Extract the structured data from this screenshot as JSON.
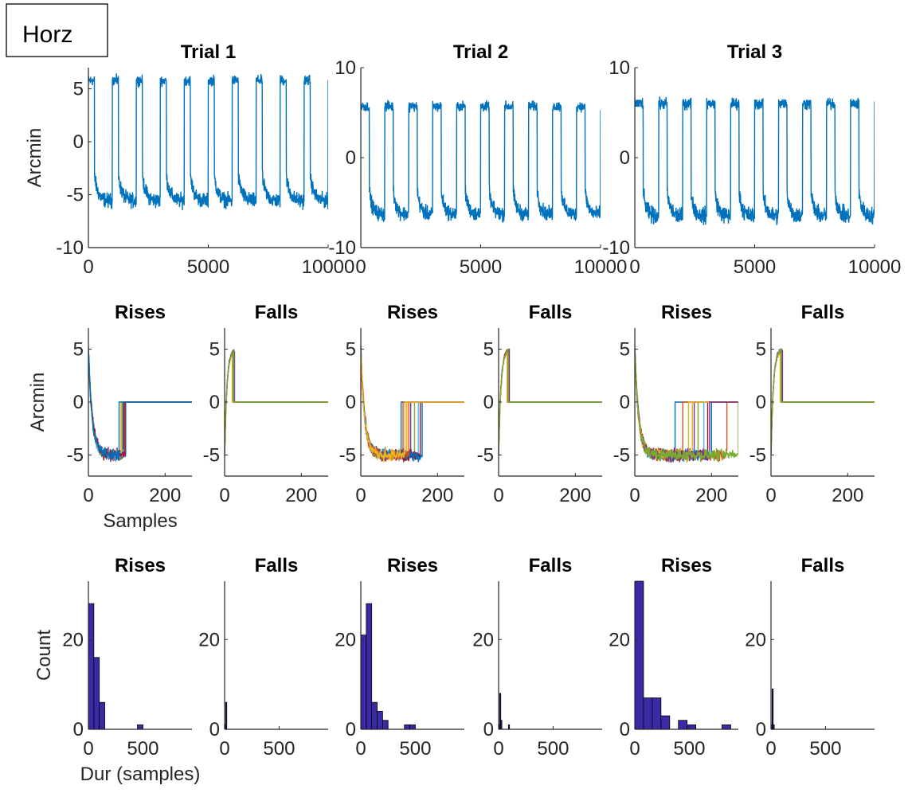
{
  "figure_label": "Horz",
  "colors": {
    "trace": "#0072BD",
    "hist_fill": "#3A2AA6",
    "axis": "#262626",
    "palette": [
      "#0072BD",
      "#D95319",
      "#EDB120",
      "#7E2F8E",
      "#77AC30",
      "#4DBEEE",
      "#A2142F"
    ]
  },
  "chart_data": [
    {
      "type": "line",
      "title": "Trial 1",
      "ylabel": "Arcmin",
      "xlabel": "",
      "xlim": [
        0,
        10000
      ],
      "ylim": [
        -10,
        7
      ],
      "xticks": [
        0,
        5000,
        10000
      ],
      "yticks": [
        -10,
        -5,
        0,
        5
      ],
      "series": [
        {
          "high_level": 5.8,
          "low_level": -5.6,
          "cycle_samples": 1000,
          "high_samples": 250,
          "low_start": -3.2,
          "noise": 0.6
        }
      ]
    },
    {
      "type": "line",
      "title": "Trial 2",
      "ylabel": "",
      "xlabel": "",
      "xlim": [
        0,
        10000
      ],
      "ylim": [
        -10,
        10
      ],
      "xticks": [
        0,
        5000,
        10000
      ],
      "yticks": [
        -10,
        0,
        10
      ],
      "series": [
        {
          "high_level": 5.7,
          "low_level": -6.3,
          "cycle_samples": 1000,
          "high_samples": 360,
          "low_start": -3.8,
          "noise": 0.7
        }
      ]
    },
    {
      "type": "line",
      "title": "Trial 3",
      "ylabel": "",
      "xlabel": "",
      "xlim": [
        0,
        10000
      ],
      "ylim": [
        -10,
        10
      ],
      "xticks": [
        0,
        5000,
        10000
      ],
      "yticks": [
        -10,
        0,
        10
      ],
      "series": [
        {
          "high_level": 6.0,
          "low_level": -6.5,
          "cycle_samples": 1000,
          "high_samples": 350,
          "low_start": -3.9,
          "noise": 0.8
        }
      ]
    },
    {
      "type": "line",
      "title": "Rises",
      "ylabel": "Arcmin",
      "xlabel": "Samples",
      "xlim": [
        0,
        270
      ],
      "ylim": [
        -7,
        7
      ],
      "xticks": [
        0,
        200
      ],
      "yticks": [
        -5,
        0,
        5
      ],
      "series": [
        {
          "end": 90
        },
        {
          "end": 95
        },
        {
          "end": 85
        },
        {
          "end": 92
        },
        {
          "end": 88
        },
        {
          "end": 98
        },
        {
          "end": 96
        },
        {
          "end": 80
        }
      ]
    },
    {
      "type": "line",
      "title": "Falls",
      "ylabel": "",
      "xlabel": "",
      "xlim": [
        0,
        270
      ],
      "ylim": [
        -7,
        7
      ],
      "xticks": [
        0,
        200
      ],
      "yticks": [
        -5,
        0,
        5
      ],
      "series": [
        {
          "end": 22
        },
        {
          "end": 24
        },
        {
          "end": 20
        },
        {
          "end": 26
        },
        {
          "end": 24
        }
      ]
    },
    {
      "type": "line",
      "title": "Rises",
      "ylabel": "",
      "xlabel": "",
      "xlim": [
        0,
        270
      ],
      "ylim": [
        -7,
        7
      ],
      "xticks": [
        0,
        200
      ],
      "yticks": [
        -5,
        0,
        5
      ],
      "series": [
        {
          "end": 105
        },
        {
          "end": 110
        },
        {
          "end": 120
        },
        {
          "end": 130
        },
        {
          "end": 140
        },
        {
          "end": 150
        },
        {
          "end": 155
        },
        {
          "end": 160
        },
        {
          "end": 125
        },
        {
          "end": 115
        }
      ]
    },
    {
      "type": "line",
      "title": "Falls",
      "ylabel": "",
      "xlabel": "",
      "xlim": [
        0,
        270
      ],
      "ylim": [
        -7,
        7
      ],
      "xticks": [
        0,
        200
      ],
      "yticks": [
        -5,
        0,
        5
      ],
      "series": [
        {
          "end": 24
        },
        {
          "end": 26
        },
        {
          "end": 22
        },
        {
          "end": 28
        },
        {
          "end": 25
        }
      ]
    },
    {
      "type": "line",
      "title": "Rises",
      "ylabel": "",
      "xlabel": "",
      "xlim": [
        0,
        270
      ],
      "ylim": [
        -7,
        7
      ],
      "xticks": [
        0,
        200
      ],
      "yticks": [
        -5,
        0,
        5
      ],
      "series": [
        {
          "end": 105
        },
        {
          "end": 125
        },
        {
          "end": 140
        },
        {
          "end": 155
        },
        {
          "end": 165
        },
        {
          "end": 180
        },
        {
          "end": 190
        },
        {
          "end": 200
        },
        {
          "end": 240
        },
        {
          "end": 150
        },
        {
          "end": 195
        },
        {
          "end": 270
        }
      ]
    },
    {
      "type": "line",
      "title": "Falls",
      "ylabel": "",
      "xlabel": "",
      "xlim": [
        0,
        270
      ],
      "ylim": [
        -7,
        7
      ],
      "xticks": [
        0,
        200
      ],
      "yticks": [
        -5,
        0,
        5
      ],
      "series": [
        {
          "end": 26
        },
        {
          "end": 28
        },
        {
          "end": 24
        },
        {
          "end": 30
        },
        {
          "end": 27
        }
      ]
    },
    {
      "type": "bar",
      "title": "Rises",
      "ylabel": "Count",
      "xlabel": "Dur (samples)",
      "xlim": [
        0,
        950
      ],
      "ylim": [
        0,
        33
      ],
      "xticks": [
        0,
        500
      ],
      "yticks": [
        0,
        20
      ],
      "bin_width": 50,
      "bins": [
        {
          "x": 0,
          "value": 28
        },
        {
          "x": 50,
          "value": 16
        },
        {
          "x": 100,
          "value": 6
        },
        {
          "x": 450,
          "value": 1
        }
      ]
    },
    {
      "type": "bar",
      "title": "Falls",
      "ylabel": "",
      "xlabel": "",
      "xlim": [
        0,
        950
      ],
      "ylim": [
        0,
        33
      ],
      "xticks": [
        0,
        500
      ],
      "yticks": [
        0,
        20
      ],
      "bin_width": 10,
      "bins": [
        {
          "x": 0,
          "value": 1
        },
        {
          "x": 10,
          "value": 6
        }
      ]
    },
    {
      "type": "bar",
      "title": "Rises",
      "ylabel": "",
      "xlabel": "",
      "xlim": [
        0,
        950
      ],
      "ylim": [
        0,
        33
      ],
      "xticks": [
        0,
        500
      ],
      "yticks": [
        0,
        20
      ],
      "bin_width": 50,
      "bins": [
        {
          "x": 0,
          "value": 21
        },
        {
          "x": 50,
          "value": 28
        },
        {
          "x": 100,
          "value": 6
        },
        {
          "x": 150,
          "value": 4
        },
        {
          "x": 200,
          "value": 2
        },
        {
          "x": 400,
          "value": 1
        },
        {
          "x": 450,
          "value": 1
        }
      ]
    },
    {
      "type": "bar",
      "title": "Falls",
      "ylabel": "",
      "xlabel": "",
      "xlim": [
        0,
        950
      ],
      "ylim": [
        0,
        33
      ],
      "xticks": [
        0,
        500
      ],
      "yticks": [
        0,
        20
      ],
      "bin_width": 10,
      "bins": [
        {
          "x": 0,
          "value": 1
        },
        {
          "x": 10,
          "value": 8
        },
        {
          "x": 20,
          "value": 2
        },
        {
          "x": 90,
          "value": 1
        }
      ]
    },
    {
      "type": "bar",
      "title": "Rises",
      "ylabel": "",
      "xlabel": "",
      "xlim": [
        0,
        950
      ],
      "ylim": [
        0,
        33
      ],
      "xticks": [
        0,
        500
      ],
      "yticks": [
        0,
        20
      ],
      "bin_width": 80,
      "bins": [
        {
          "x": 0,
          "value": 33
        },
        {
          "x": 80,
          "value": 7
        },
        {
          "x": 160,
          "value": 7
        },
        {
          "x": 240,
          "value": 3
        },
        {
          "x": 400,
          "value": 2
        },
        {
          "x": 480,
          "value": 1
        },
        {
          "x": 800,
          "value": 1
        }
      ]
    },
    {
      "type": "bar",
      "title": "Falls",
      "ylabel": "",
      "xlabel": "",
      "xlim": [
        0,
        950
      ],
      "ylim": [
        0,
        33
      ],
      "xticks": [
        0,
        500
      ],
      "yticks": [
        0,
        20
      ],
      "bin_width": 10,
      "bins": [
        {
          "x": 0,
          "value": 1
        },
        {
          "x": 10,
          "value": 9
        },
        {
          "x": 20,
          "value": 1
        }
      ]
    }
  ]
}
